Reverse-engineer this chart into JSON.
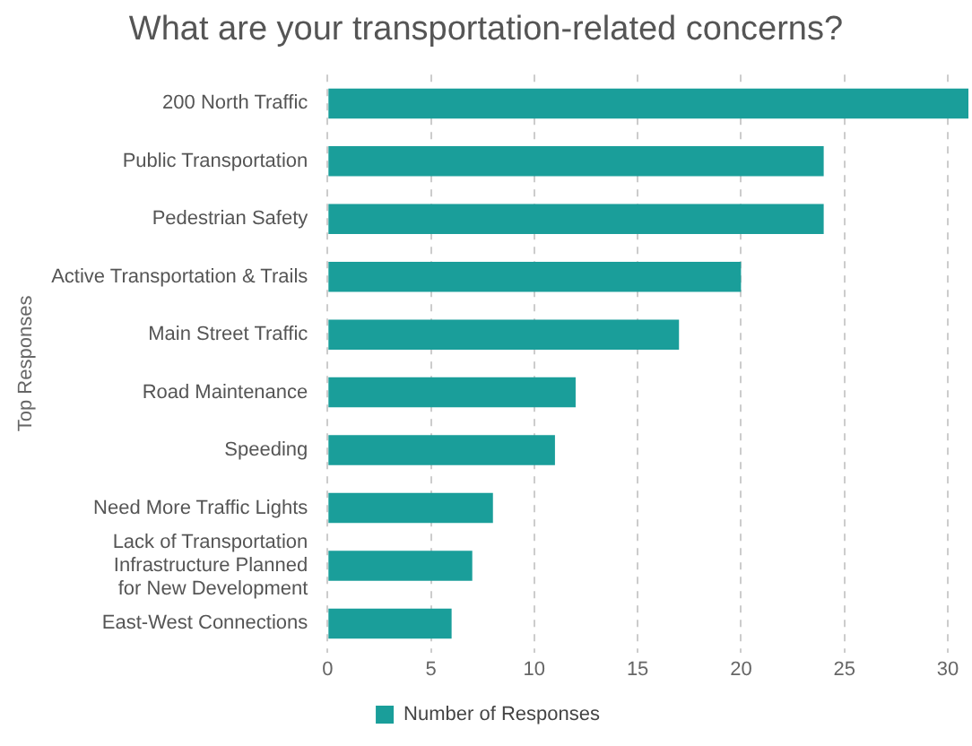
{
  "chart_data": {
    "type": "bar",
    "orientation": "horizontal",
    "title": "What are your transportation-related concerns?",
    "ylabel": "Top Responses",
    "categories": [
      "200 North Traffic",
      "Public Transportation",
      "Pedestrian Safety",
      "Active Transportation & Trails",
      "Main Street Traffic",
      "Road Maintenance",
      "Speeding",
      "Need More Traffic Lights",
      "Lack of Transportation Infrastructure Planned for New Development",
      "East-West Connections"
    ],
    "series": [
      {
        "name": "Number of Responses",
        "color": "#1a9e9a",
        "values": [
          31,
          24,
          24,
          20,
          17,
          12,
          11,
          8,
          7,
          6
        ]
      }
    ],
    "xlim": [
      0,
      31
    ],
    "xticks": [
      0,
      5,
      10,
      15,
      20,
      25,
      30
    ],
    "grid": "x",
    "legend": "bottom"
  }
}
